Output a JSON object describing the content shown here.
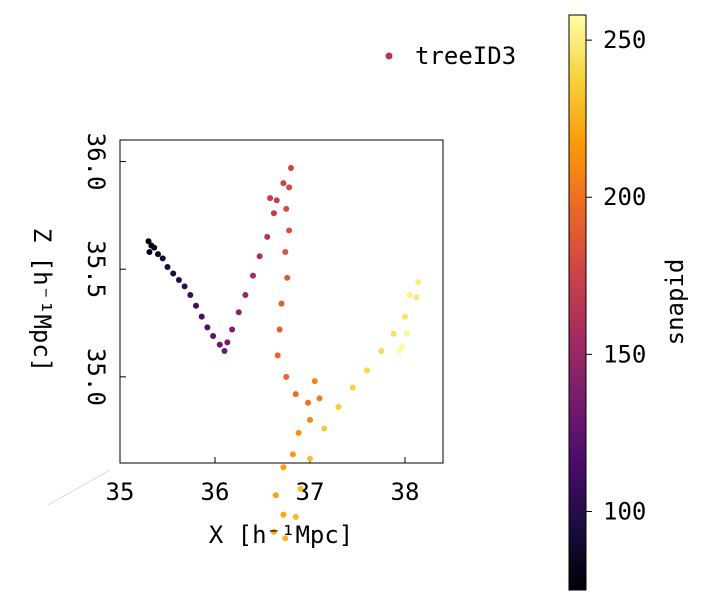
{
  "chart_data": {
    "type": "scatter",
    "projection": "3d",
    "xlabel": "X [h⁻¹Mpc]",
    "zlabel": "Z [h⁻¹Mpc]",
    "x_ticks": [
      "35",
      "36",
      "37",
      "38"
    ],
    "z_ticks": [
      "35.0",
      "35.5",
      "36.0"
    ],
    "xlim": [
      35.0,
      38.4
    ],
    "zlim": [
      34.6,
      36.1
    ],
    "legend": {
      "label": "treeID3",
      "placement": "top-right",
      "color": "#b5365b"
    },
    "colorbar": {
      "label": "snapid",
      "ticks": [
        "100",
        "150",
        "200",
        "250"
      ],
      "range": [
        75,
        258
      ],
      "colormap": "inferno",
      "stops": [
        "#000004",
        "#1b0c41",
        "#4a0c6b",
        "#781c6d",
        "#a52c60",
        "#cf4446",
        "#ed6925",
        "#fb9b06",
        "#f7d13d",
        "#fcffa4"
      ]
    },
    "grid": false,
    "series": [
      {
        "name": "treeID3",
        "points": [
          {
            "x": 35.3,
            "z": 35.63,
            "snap": 75
          },
          {
            "x": 35.33,
            "z": 35.61,
            "snap": 78
          },
          {
            "x": 35.31,
            "z": 35.58,
            "snap": 80
          },
          {
            "x": 35.36,
            "z": 35.6,
            "snap": 83
          },
          {
            "x": 35.4,
            "z": 35.57,
            "snap": 86
          },
          {
            "x": 35.45,
            "z": 35.55,
            "snap": 89
          },
          {
            "x": 35.5,
            "z": 35.51,
            "snap": 92
          },
          {
            "x": 35.56,
            "z": 35.48,
            "snap": 96
          },
          {
            "x": 35.62,
            "z": 35.45,
            "snap": 100
          },
          {
            "x": 35.68,
            "z": 35.42,
            "snap": 104
          },
          {
            "x": 35.74,
            "z": 35.38,
            "snap": 108
          },
          {
            "x": 35.8,
            "z": 35.33,
            "snap": 112
          },
          {
            "x": 35.86,
            "z": 35.28,
            "snap": 116
          },
          {
            "x": 35.92,
            "z": 35.23,
            "snap": 120
          },
          {
            "x": 35.98,
            "z": 35.19,
            "snap": 124
          },
          {
            "x": 36.05,
            "z": 35.15,
            "snap": 128
          },
          {
            "x": 36.1,
            "z": 35.12,
            "snap": 132
          },
          {
            "x": 36.13,
            "z": 35.16,
            "snap": 136
          },
          {
            "x": 36.18,
            "z": 35.22,
            "snap": 140
          },
          {
            "x": 36.25,
            "z": 35.3,
            "snap": 145
          },
          {
            "x": 36.32,
            "z": 35.38,
            "snap": 150
          },
          {
            "x": 36.4,
            "z": 35.47,
            "snap": 155
          },
          {
            "x": 36.47,
            "z": 35.56,
            "snap": 160
          },
          {
            "x": 36.55,
            "z": 35.65,
            "snap": 165
          },
          {
            "x": 36.62,
            "z": 35.76,
            "snap": 168
          },
          {
            "x": 36.58,
            "z": 35.83,
            "snap": 170
          },
          {
            "x": 36.65,
            "z": 35.82,
            "snap": 172
          },
          {
            "x": 36.72,
            "z": 35.9,
            "snap": 175
          },
          {
            "x": 36.8,
            "z": 35.97,
            "snap": 177
          },
          {
            "x": 36.78,
            "z": 35.88,
            "snap": 179
          },
          {
            "x": 36.75,
            "z": 35.78,
            "snap": 181
          },
          {
            "x": 36.78,
            "z": 35.68,
            "snap": 183
          },
          {
            "x": 36.74,
            "z": 35.58,
            "snap": 185
          },
          {
            "x": 36.76,
            "z": 35.46,
            "snap": 187
          },
          {
            "x": 36.7,
            "z": 35.34,
            "snap": 189
          },
          {
            "x": 36.68,
            "z": 35.22,
            "snap": 191
          },
          {
            "x": 36.66,
            "z": 35.1,
            "snap": 193
          },
          {
            "x": 36.75,
            "z": 35.0,
            "snap": 195
          },
          {
            "x": 36.85,
            "z": 34.92,
            "snap": 198
          },
          {
            "x": 36.98,
            "z": 34.88,
            "snap": 201
          },
          {
            "x": 37.1,
            "z": 34.9,
            "snap": 204
          },
          {
            "x": 37.05,
            "z": 34.98,
            "snap": 207
          },
          {
            "x": 37.0,
            "z": 34.8,
            "snap": 210
          },
          {
            "x": 36.88,
            "z": 34.74,
            "snap": 213
          },
          {
            "x": 36.82,
            "z": 34.64,
            "snap": 216
          },
          {
            "x": 36.72,
            "z": 34.58,
            "snap": 218
          },
          {
            "x": 36.64,
            "z": 34.45,
            "snap": 220
          },
          {
            "x": 36.72,
            "z": 34.36,
            "snap": 222
          },
          {
            "x": 36.62,
            "z": 34.28,
            "snap": 224
          },
          {
            "x": 36.74,
            "z": 34.25,
            "snap": 226
          },
          {
            "x": 36.85,
            "z": 34.35,
            "snap": 228
          },
          {
            "x": 36.9,
            "z": 34.48,
            "snap": 230
          },
          {
            "x": 37.0,
            "z": 34.62,
            "snap": 232
          },
          {
            "x": 37.15,
            "z": 34.76,
            "snap": 234
          },
          {
            "x": 37.3,
            "z": 34.86,
            "snap": 236
          },
          {
            "x": 37.45,
            "z": 34.95,
            "snap": 238
          },
          {
            "x": 37.6,
            "z": 35.03,
            "snap": 240
          },
          {
            "x": 37.75,
            "z": 35.12,
            "snap": 242
          },
          {
            "x": 37.88,
            "z": 35.2,
            "snap": 244
          },
          {
            "x": 38.0,
            "z": 35.28,
            "snap": 246
          },
          {
            "x": 38.12,
            "z": 35.37,
            "snap": 248
          },
          {
            "x": 38.14,
            "z": 35.44,
            "snap": 250
          },
          {
            "x": 38.05,
            "z": 35.38,
            "snap": 252
          },
          {
            "x": 38.02,
            "z": 35.2,
            "snap": 254
          },
          {
            "x": 37.97,
            "z": 35.14,
            "snap": 256
          },
          {
            "x": 37.94,
            "z": 35.12,
            "snap": 258
          }
        ]
      }
    ]
  }
}
